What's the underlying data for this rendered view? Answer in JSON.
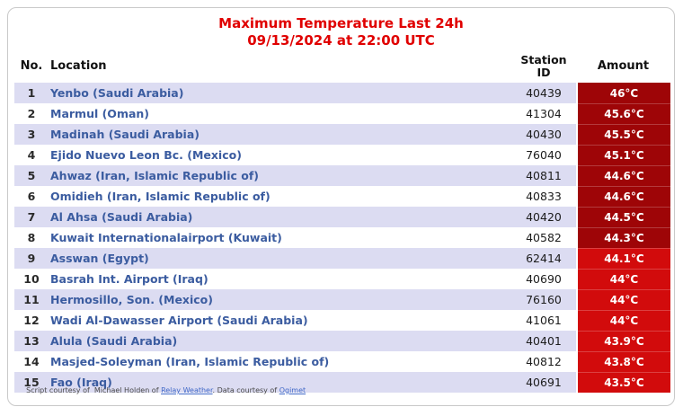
{
  "title": {
    "line1": "Maximum Temperature Last 24h",
    "line2": "09/13/2024 at 22:00 UTC"
  },
  "columns": {
    "no": "No.",
    "location": "Location",
    "station_line1": "Station",
    "station_line2": "ID",
    "amount": "Amount"
  },
  "rows": [
    {
      "no": "1",
      "location": "Yenbo (Saudi Arabia)",
      "station": "40439",
      "amount": "46°C",
      "shade": "dark"
    },
    {
      "no": "2",
      "location": "Marmul (Oman)",
      "station": "41304",
      "amount": "45.6°C",
      "shade": "dark"
    },
    {
      "no": "3",
      "location": "Madinah (Saudi Arabia)",
      "station": "40430",
      "amount": "45.5°C",
      "shade": "dark"
    },
    {
      "no": "4",
      "location": "Ejido Nuevo Leon Bc. (Mexico)",
      "station": "76040",
      "amount": "45.1°C",
      "shade": "dark"
    },
    {
      "no": "5",
      "location": "Ahwaz (Iran, Islamic Republic of)",
      "station": "40811",
      "amount": "44.6°C",
      "shade": "dark"
    },
    {
      "no": "6",
      "location": "Omidieh (Iran, Islamic Republic of)",
      "station": "40833",
      "amount": "44.6°C",
      "shade": "dark"
    },
    {
      "no": "7",
      "location": "Al Ahsa (Saudi Arabia)",
      "station": "40420",
      "amount": "44.5°C",
      "shade": "dark"
    },
    {
      "no": "8",
      "location": "Kuwait Internationalairport (Kuwait)",
      "station": "40582",
      "amount": "44.3°C",
      "shade": "dark"
    },
    {
      "no": "9",
      "location": "Asswan (Egypt)",
      "station": "62414",
      "amount": "44.1°C",
      "shade": "bright"
    },
    {
      "no": "10",
      "location": "Basrah Int. Airport (Iraq)",
      "station": "40690",
      "amount": "44°C",
      "shade": "bright"
    },
    {
      "no": "11",
      "location": "Hermosillo, Son. (Mexico)",
      "station": "76160",
      "amount": "44°C",
      "shade": "bright"
    },
    {
      "no": "12",
      "location": "Wadi Al-Dawasser Airport (Saudi Arabia)",
      "station": "41061",
      "amount": "44°C",
      "shade": "bright"
    },
    {
      "no": "13",
      "location": "Alula (Saudi Arabia)",
      "station": "40401",
      "amount": "43.9°C",
      "shade": "bright"
    },
    {
      "no": "14",
      "location": "Masjed-Soleyman (Iran, Islamic Republic of)",
      "station": "40812",
      "amount": "43.8°C",
      "shade": "bright"
    },
    {
      "no": "15",
      "location": "Fao (Iraq)",
      "station": "40691",
      "amount": "43.5°C",
      "shade": "bright"
    }
  ],
  "footer": {
    "part1": "Script courtesy of  Michael Holden of ",
    "link1": "Relay Weather",
    "part2": ". Data courtesy of ",
    "link2": "Ogimet"
  },
  "colors": {
    "title_red": "#e00000",
    "stripe": "#dcdcf2",
    "location_blue": "#3b5ca0",
    "amount_dark": "#9e0507",
    "amount_bright": "#d20b0c",
    "amount_text": "#ffffff",
    "link_blue": "#4169c8"
  },
  "chart_data": {
    "type": "table",
    "title": "Maximum Temperature Last 24h",
    "subtitle": "09/13/2024 at 22:00 UTC",
    "columns": [
      "No.",
      "Location",
      "Station ID",
      "Amount"
    ],
    "unit": "°C",
    "values_c": [
      46,
      45.6,
      45.5,
      45.1,
      44.6,
      44.6,
      44.5,
      44.3,
      44.1,
      44,
      44,
      44,
      43.9,
      43.8,
      43.5
    ],
    "stations": [
      40439,
      41304,
      40430,
      76040,
      40811,
      40833,
      40420,
      40582,
      62414,
      40690,
      76160,
      41061,
      40401,
      40812,
      40691
    ],
    "locations": [
      "Yenbo (Saudi Arabia)",
      "Marmul (Oman)",
      "Madinah (Saudi Arabia)",
      "Ejido Nuevo Leon Bc. (Mexico)",
      "Ahwaz (Iran, Islamic Republic of)",
      "Omidieh (Iran, Islamic Republic of)",
      "Al Ahsa (Saudi Arabia)",
      "Kuwait Internationalairport (Kuwait)",
      "Asswan (Egypt)",
      "Basrah Int. Airport (Iraq)",
      "Hermosillo, Son. (Mexico)",
      "Wadi Al-Dawasser Airport (Saudi Arabia)",
      "Alula (Saudi Arabia)",
      "Masjed-Soleyman (Iran, Islamic Republic of)",
      "Fao (Iraq)"
    ],
    "credit": "Script courtesy of Michael Holden of Relay Weather. Data courtesy of Ogimet"
  }
}
